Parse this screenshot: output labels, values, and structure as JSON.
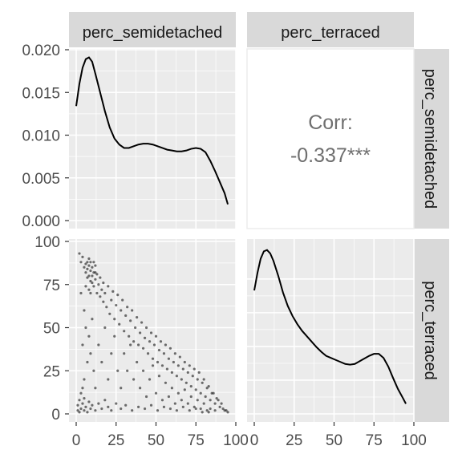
{
  "chart_data": {
    "type": "scatter",
    "panel_type": "pairs",
    "variables": [
      "perc_semidetached",
      "perc_terraced"
    ],
    "strip_labels": {
      "columns": [
        "perc_semidetached",
        "perc_terraced"
      ],
      "rows": [
        "perc_semidetached",
        "perc_terraced"
      ]
    },
    "panels": [
      {
        "id": "density-semidetached",
        "type": "line",
        "x_var": "perc_semidetached",
        "xlim": [
          0,
          100
        ],
        "ylim": [
          0,
          0.02
        ],
        "y_ticks": [
          "0.000",
          "0.005",
          "0.010",
          "0.015",
          "0.020"
        ],
        "points": [
          [
            0,
            0.0134
          ],
          [
            2,
            0.016
          ],
          [
            4,
            0.0179
          ],
          [
            6,
            0.0189
          ],
          [
            8,
            0.0191
          ],
          [
            10,
            0.0186
          ],
          [
            12,
            0.0172
          ],
          [
            15,
            0.015
          ],
          [
            18,
            0.0128
          ],
          [
            21,
            0.0109
          ],
          [
            24,
            0.0096
          ],
          [
            27,
            0.0089
          ],
          [
            30,
            0.0085
          ],
          [
            33,
            0.0085
          ],
          [
            36,
            0.0087
          ],
          [
            39,
            0.0089
          ],
          [
            42,
            0.009
          ],
          [
            45,
            0.009
          ],
          [
            48,
            0.0089
          ],
          [
            51,
            0.0087
          ],
          [
            54,
            0.0085
          ],
          [
            57,
            0.0083
          ],
          [
            60,
            0.0082
          ],
          [
            63,
            0.0081
          ],
          [
            66,
            0.0081
          ],
          [
            69,
            0.0082
          ],
          [
            72,
            0.0084
          ],
          [
            75,
            0.0085
          ],
          [
            78,
            0.0084
          ],
          [
            81,
            0.008
          ],
          [
            84,
            0.007
          ],
          [
            87,
            0.0058
          ],
          [
            90,
            0.0045
          ],
          [
            93,
            0.0032
          ],
          [
            95,
            0.0019
          ]
        ]
      },
      {
        "id": "correlation",
        "type": "text",
        "label": "Corr:",
        "value": "-0.337***"
      },
      {
        "id": "scatter-terraced-vs-semidetached",
        "type": "scatter",
        "x_var": "perc_semidetached",
        "y_var": "perc_terraced",
        "xlim": [
          0,
          100
        ],
        "ylim": [
          0,
          100
        ],
        "x_ticks": [
          "0",
          "25",
          "50",
          "75",
          "100"
        ],
        "y_ticks": [
          "0",
          "25",
          "50",
          "75",
          "100"
        ],
        "points": [
          [
            2,
            93
          ],
          [
            3,
            88
          ],
          [
            4,
            91
          ],
          [
            5,
            85
          ],
          [
            6,
            82
          ],
          [
            6,
            87
          ],
          [
            7,
            79
          ],
          [
            7,
            84
          ],
          [
            8,
            86
          ],
          [
            8,
            90
          ],
          [
            9,
            77
          ],
          [
            9,
            83
          ],
          [
            10,
            80
          ],
          [
            10,
            85
          ],
          [
            11,
            74
          ],
          [
            11,
            82
          ],
          [
            12,
            78
          ],
          [
            12,
            86
          ],
          [
            13,
            70
          ],
          [
            13,
            81
          ],
          [
            14,
            75
          ],
          [
            15,
            68
          ],
          [
            15,
            79
          ],
          [
            16,
            72
          ],
          [
            17,
            65
          ],
          [
            17,
            76
          ],
          [
            18,
            70
          ],
          [
            19,
            62
          ],
          [
            20,
            74
          ],
          [
            21,
            58
          ],
          [
            22,
            66
          ],
          [
            23,
            71
          ],
          [
            24,
            55
          ],
          [
            25,
            63
          ],
          [
            26,
            69
          ],
          [
            27,
            52
          ],
          [
            28,
            60
          ],
          [
            29,
            66
          ],
          [
            30,
            48
          ],
          [
            31,
            57
          ],
          [
            32,
            62
          ],
          [
            33,
            45
          ],
          [
            34,
            54
          ],
          [
            35,
            60
          ],
          [
            36,
            42
          ],
          [
            37,
            50
          ],
          [
            38,
            56
          ],
          [
            39,
            40
          ],
          [
            40,
            47
          ],
          [
            41,
            53
          ],
          [
            42,
            38
          ],
          [
            43,
            44
          ],
          [
            44,
            50
          ],
          [
            45,
            35
          ],
          [
            46,
            42
          ],
          [
            47,
            47
          ],
          [
            48,
            32
          ],
          [
            49,
            40
          ],
          [
            50,
            45
          ],
          [
            51,
            30
          ],
          [
            52,
            37
          ],
          [
            53,
            42
          ],
          [
            54,
            28
          ],
          [
            55,
            35
          ],
          [
            56,
            40
          ],
          [
            57,
            26
          ],
          [
            58,
            32
          ],
          [
            59,
            38
          ],
          [
            60,
            24
          ],
          [
            61,
            30
          ],
          [
            62,
            35
          ],
          [
            63,
            22
          ],
          [
            64,
            28
          ],
          [
            65,
            33
          ],
          [
            66,
            20
          ],
          [
            67,
            26
          ],
          [
            68,
            30
          ],
          [
            69,
            18
          ],
          [
            70,
            24
          ],
          [
            71,
            28
          ],
          [
            72,
            16
          ],
          [
            73,
            22
          ],
          [
            74,
            26
          ],
          [
            75,
            14
          ],
          [
            76,
            20
          ],
          [
            77,
            24
          ],
          [
            78,
            12
          ],
          [
            79,
            18
          ],
          [
            80,
            20
          ],
          [
            81,
            10
          ],
          [
            82,
            15
          ],
          [
            83,
            16
          ],
          [
            84,
            8
          ],
          [
            85,
            12
          ],
          [
            86,
            12
          ],
          [
            87,
            6
          ],
          [
            88,
            9
          ],
          [
            89,
            8
          ],
          [
            90,
            4
          ],
          [
            91,
            6
          ],
          [
            92,
            3
          ],
          [
            93,
            2
          ],
          [
            94,
            2
          ],
          [
            95,
            1
          ],
          [
            3,
            70
          ],
          [
            5,
            60
          ],
          [
            6,
            50
          ],
          [
            4,
            40
          ],
          [
            7,
            30
          ],
          [
            5,
            20
          ],
          [
            8,
            45
          ],
          [
            9,
            35
          ],
          [
            10,
            55
          ],
          [
            11,
            25
          ],
          [
            12,
            15
          ],
          [
            14,
            40
          ],
          [
            16,
            30
          ],
          [
            18,
            50
          ],
          [
            20,
            20
          ],
          [
            22,
            35
          ],
          [
            24,
            45
          ],
          [
            26,
            25
          ],
          [
            28,
            15
          ],
          [
            30,
            35
          ],
          [
            32,
            25
          ],
          [
            34,
            40
          ],
          [
            36,
            20
          ],
          [
            38,
            30
          ],
          [
            40,
            15
          ],
          [
            42,
            25
          ],
          [
            44,
            10
          ],
          [
            46,
            20
          ],
          [
            48,
            28
          ],
          [
            50,
            12
          ],
          [
            52,
            22
          ],
          [
            54,
            8
          ],
          [
            56,
            18
          ],
          [
            58,
            10
          ],
          [
            60,
            15
          ],
          [
            62,
            6
          ],
          [
            64,
            12
          ],
          [
            66,
            8
          ],
          [
            68,
            14
          ],
          [
            70,
            6
          ],
          [
            72,
            10
          ],
          [
            74,
            4
          ],
          [
            76,
            8
          ],
          [
            78,
            3
          ],
          [
            80,
            6
          ],
          [
            82,
            2
          ],
          [
            84,
            3
          ],
          [
            1,
            2
          ],
          [
            1,
            5
          ],
          [
            2,
            1
          ],
          [
            2,
            8
          ],
          [
            3,
            3
          ],
          [
            3,
            12
          ],
          [
            4,
            6
          ],
          [
            4,
            15
          ],
          [
            5,
            2
          ],
          [
            5,
            9
          ],
          [
            6,
            4
          ],
          [
            7,
            1
          ],
          [
            8,
            7
          ],
          [
            9,
            3
          ],
          [
            10,
            5
          ],
          [
            12,
            2
          ],
          [
            14,
            6
          ],
          [
            16,
            3
          ],
          [
            18,
            8
          ],
          [
            20,
            4
          ],
          [
            22,
            2
          ],
          [
            25,
            6
          ],
          [
            28,
            3
          ],
          [
            31,
            5
          ],
          [
            35,
            2
          ],
          [
            39,
            4
          ],
          [
            43,
            3
          ],
          [
            47,
            5
          ],
          [
            51,
            2
          ],
          [
            55,
            4
          ],
          [
            59,
            3
          ],
          [
            63,
            2
          ],
          [
            67,
            4
          ],
          [
            71,
            2
          ],
          [
            75,
            3
          ],
          [
            79,
            1
          ],
          [
            83,
            1
          ],
          [
            87,
            2
          ],
          [
            7,
            88
          ],
          [
            8,
            80
          ],
          [
            9,
            88
          ],
          [
            10,
            76
          ],
          [
            11,
            88
          ],
          [
            12,
            82
          ],
          [
            8,
            72
          ],
          [
            6,
            74
          ],
          [
            9,
            70
          ]
        ]
      },
      {
        "id": "density-terraced",
        "type": "line",
        "x_var": "perc_terraced",
        "xlim": [
          0,
          100
        ],
        "x_ticks": [
          "0",
          "25",
          "50",
          "75",
          "100"
        ],
        "points": [
          [
            0,
            0.0183
          ],
          [
            2,
            0.0209
          ],
          [
            4,
            0.023
          ],
          [
            6,
            0.0241
          ],
          [
            8,
            0.0243
          ],
          [
            10,
            0.0238
          ],
          [
            12,
            0.0227
          ],
          [
            15,
            0.0205
          ],
          [
            18,
            0.018
          ],
          [
            21,
            0.016
          ],
          [
            24,
            0.0145
          ],
          [
            27,
            0.0133
          ],
          [
            30,
            0.0123
          ],
          [
            33,
            0.0115
          ],
          [
            36,
            0.0107
          ],
          [
            39,
            0.0099
          ],
          [
            42,
            0.0092
          ],
          [
            45,
            0.0086
          ],
          [
            48,
            0.0083
          ],
          [
            51,
            0.008
          ],
          [
            54,
            0.0077
          ],
          [
            57,
            0.0074
          ],
          [
            60,
            0.0073
          ],
          [
            63,
            0.0074
          ],
          [
            66,
            0.0078
          ],
          [
            69,
            0.0082
          ],
          [
            72,
            0.0086
          ],
          [
            75,
            0.0089
          ],
          [
            78,
            0.0089
          ],
          [
            81,
            0.0083
          ],
          [
            84,
            0.007
          ],
          [
            87,
            0.0053
          ],
          [
            90,
            0.0037
          ],
          [
            93,
            0.0024
          ],
          [
            95,
            0.0015
          ]
        ]
      }
    ]
  }
}
